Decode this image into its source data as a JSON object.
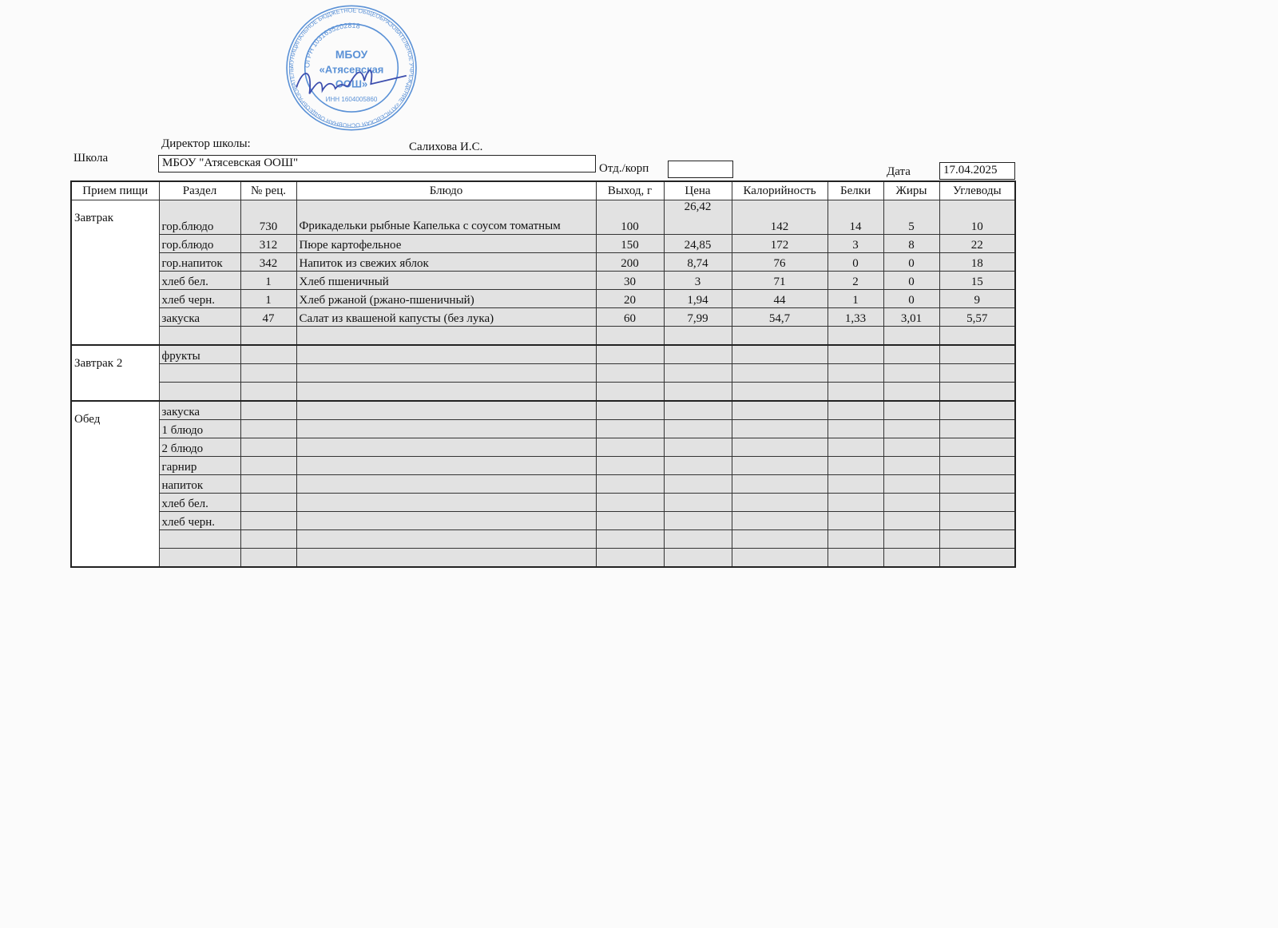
{
  "header": {
    "director_label": "Директор школы:",
    "director_name": "Салихова И.С.",
    "school_label": "Школа",
    "school_value": "МБОУ \"Атясевская ООШ\"",
    "dept_label": "Отд./корп",
    "dept_value": "",
    "date_label": "Дата",
    "date_value": "17.04.2025"
  },
  "stamp": {
    "outer_text": "МУНИЦИПАЛЬНОЕ БЮДЖЕТНОЕ ОБЩЕОБРАЗОВАТЕЛЬНОЕ УЧРЕЖДЕНИЕ «АТЯСЕВСКАЯ ОСНОВНАЯ ОБЩЕОБРАЗОВАТЕЛЬНАЯ ШКОЛА» АКТАНЫШСКОГО МУНИЦИПАЛЬНОГО РАЙОНА",
    "ogrn": "ОГРН 1031635202818",
    "inn": "ИНН 1604005860",
    "center_line1": "МБОУ",
    "center_line2": "«Атясевская",
    "center_line3": "ООШ»",
    "color": "#3f7fd0"
  },
  "table": {
    "columns": [
      "Прием пищи",
      "Раздел",
      "№ рец.",
      "Блюдо",
      "Выход, г",
      "Цена",
      "Калорийность",
      "Белки",
      "Жиры",
      "Углеводы"
    ],
    "breakfast": {
      "meal": "Завтрак",
      "rows": [
        [
          "гор.блюдо",
          "730",
          "Фрикадельки рыбные Капелька с соусом томатным",
          "100",
          "26,42",
          "142",
          "14",
          "5",
          "10"
        ],
        [
          "гор.блюдо",
          "312",
          "Пюре картофельное",
          "150",
          "24,85",
          "172",
          "3",
          "8",
          "22"
        ],
        [
          "гор.напиток",
          "342",
          "Напиток из свежих яблок",
          "200",
          "8,74",
          "76",
          "0",
          "0",
          "18"
        ],
        [
          "хлеб бел.",
          "1",
          "Хлеб пшеничный",
          "30",
          "3",
          "71",
          "2",
          "0",
          "15"
        ],
        [
          "хлеб черн.",
          "1",
          "Хлеб ржаной (ржано-пшеничный)",
          "20",
          "1,94",
          "44",
          "1",
          "0",
          "9"
        ],
        [
          "закуска",
          "47",
          "Салат из квашеной капусты (без лука)",
          "60",
          "7,99",
          "54,7",
          "1,33",
          "3,01",
          "5,57"
        ],
        [
          "",
          "",
          "",
          "",
          "",
          "",
          "",
          "",
          ""
        ]
      ]
    },
    "breakfast2": {
      "meal": "Завтрак 2",
      "rows": [
        [
          "фрукты"
        ],
        [
          ""
        ],
        [
          ""
        ]
      ]
    },
    "lunch": {
      "meal": "Обед",
      "rows": [
        [
          "закуска"
        ],
        [
          "1 блюдо"
        ],
        [
          "2 блюдо"
        ],
        [
          "гарнир"
        ],
        [
          "напиток"
        ],
        [
          "хлеб бел."
        ],
        [
          "хлеб черн."
        ],
        [
          ""
        ],
        [
          ""
        ]
      ]
    }
  }
}
